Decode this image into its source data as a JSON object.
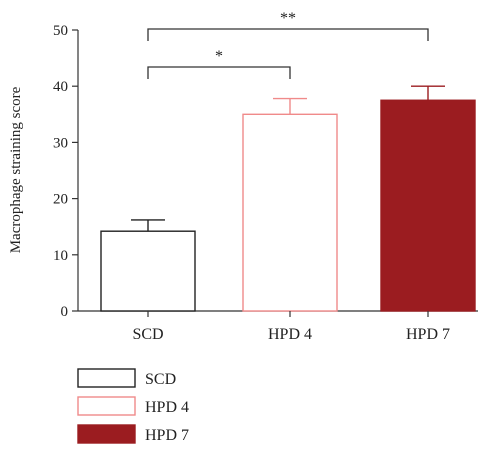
{
  "chart_data": {
    "type": "bar",
    "title": "",
    "xlabel": "",
    "ylabel": "Macrophage straining score",
    "ylim": [
      0,
      50
    ],
    "yticks": [
      0,
      10,
      20,
      30,
      40,
      50
    ],
    "grid": false,
    "legend_position": "bottom-left",
    "categories": [
      "SCD",
      "HPD 4",
      "HPD 7"
    ],
    "values": [
      14.2,
      35.0,
      37.5
    ],
    "errors": [
      2.0,
      2.8,
      2.5
    ],
    "fill_colors": [
      "#ffffff",
      "#ffffff",
      "#9b1c20"
    ],
    "edge_colors": [
      "#222222",
      "#f08a8a",
      "#9b1c20"
    ],
    "significance": [
      {
        "from": 0,
        "to": 1,
        "label": "*"
      },
      {
        "from": 0,
        "to": 2,
        "label": "**"
      }
    ],
    "legend": [
      "SCD",
      "HPD 4",
      "HPD 7"
    ]
  }
}
